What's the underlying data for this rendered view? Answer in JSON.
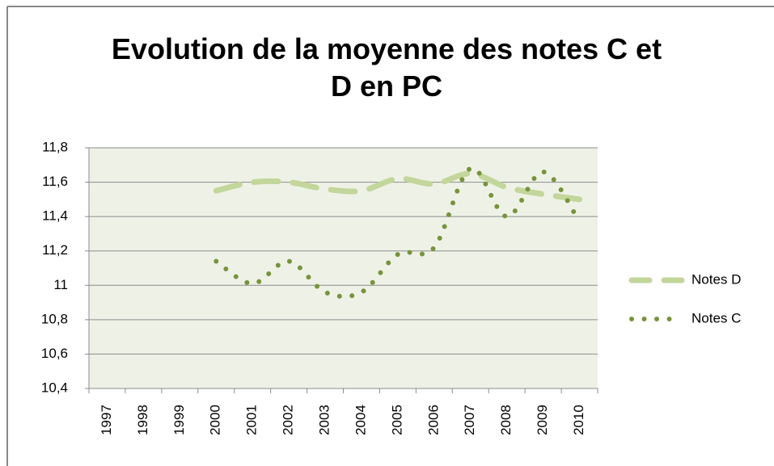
{
  "chart_data": {
    "type": "line",
    "title": "Evolution de la moyenne des notes C et D en PC",
    "categories": [
      "1997",
      "1998",
      "1999",
      "2000",
      "2001",
      "2002",
      "2003",
      "2004",
      "2005",
      "2006",
      "2007",
      "2008",
      "2009",
      "2010"
    ],
    "series": [
      {
        "name": "Notes D",
        "color": "#c3d69b",
        "values": [
          null,
          null,
          null,
          11.55,
          11.6,
          11.6,
          11.56,
          11.55,
          11.62,
          11.59,
          11.65,
          11.57,
          11.53,
          11.5
        ]
      },
      {
        "name": "Notes C",
        "color": "#77933c",
        "values": [
          null,
          null,
          null,
          11.14,
          11.01,
          11.14,
          10.96,
          10.96,
          11.18,
          11.22,
          11.68,
          11.4,
          11.66,
          11.37
        ]
      }
    ],
    "ylim": [
      10.4,
      11.8
    ],
    "yticks": [
      {
        "value": 10.4,
        "label": "10,4"
      },
      {
        "value": 10.6,
        "label": "10,6"
      },
      {
        "value": 10.8,
        "label": "10,8"
      },
      11,
      {
        "value": 11.2,
        "label": "11,2"
      },
      {
        "value": 11.4,
        "label": "11,4"
      },
      {
        "value": 11.6,
        "label": "11,6"
      },
      {
        "value": 11.8,
        "label": "11,8"
      }
    ],
    "grid": true,
    "legend": "right"
  }
}
